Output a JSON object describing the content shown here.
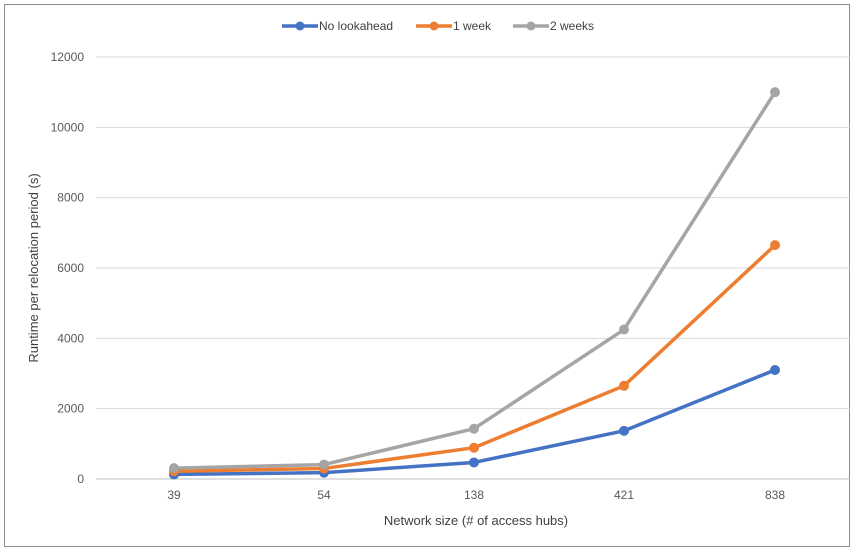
{
  "chart_data": {
    "type": "line",
    "categories": [
      "39",
      "54",
      "138",
      "421",
      "838"
    ],
    "series": [
      {
        "name": "No lookahead",
        "color": "#4472C4",
        "values": [
          130,
          180,
          470,
          1370,
          3100
        ]
      },
      {
        "name": "1 week",
        "color": "#ED7D31",
        "values": [
          220,
          300,
          890,
          2650,
          6650
        ]
      },
      {
        "name": "2 weeks",
        "color": "#A5A5A5",
        "values": [
          310,
          410,
          1430,
          4250,
          11000
        ]
      }
    ],
    "xlabel": "Network size (# of access hubs)",
    "ylabel": "Runtime per relocation period (s)",
    "ylim": [
      0,
      12000
    ],
    "yticks": [
      0,
      2000,
      4000,
      6000,
      8000,
      10000,
      12000
    ],
    "grid": true,
    "legend_position": "top"
  }
}
